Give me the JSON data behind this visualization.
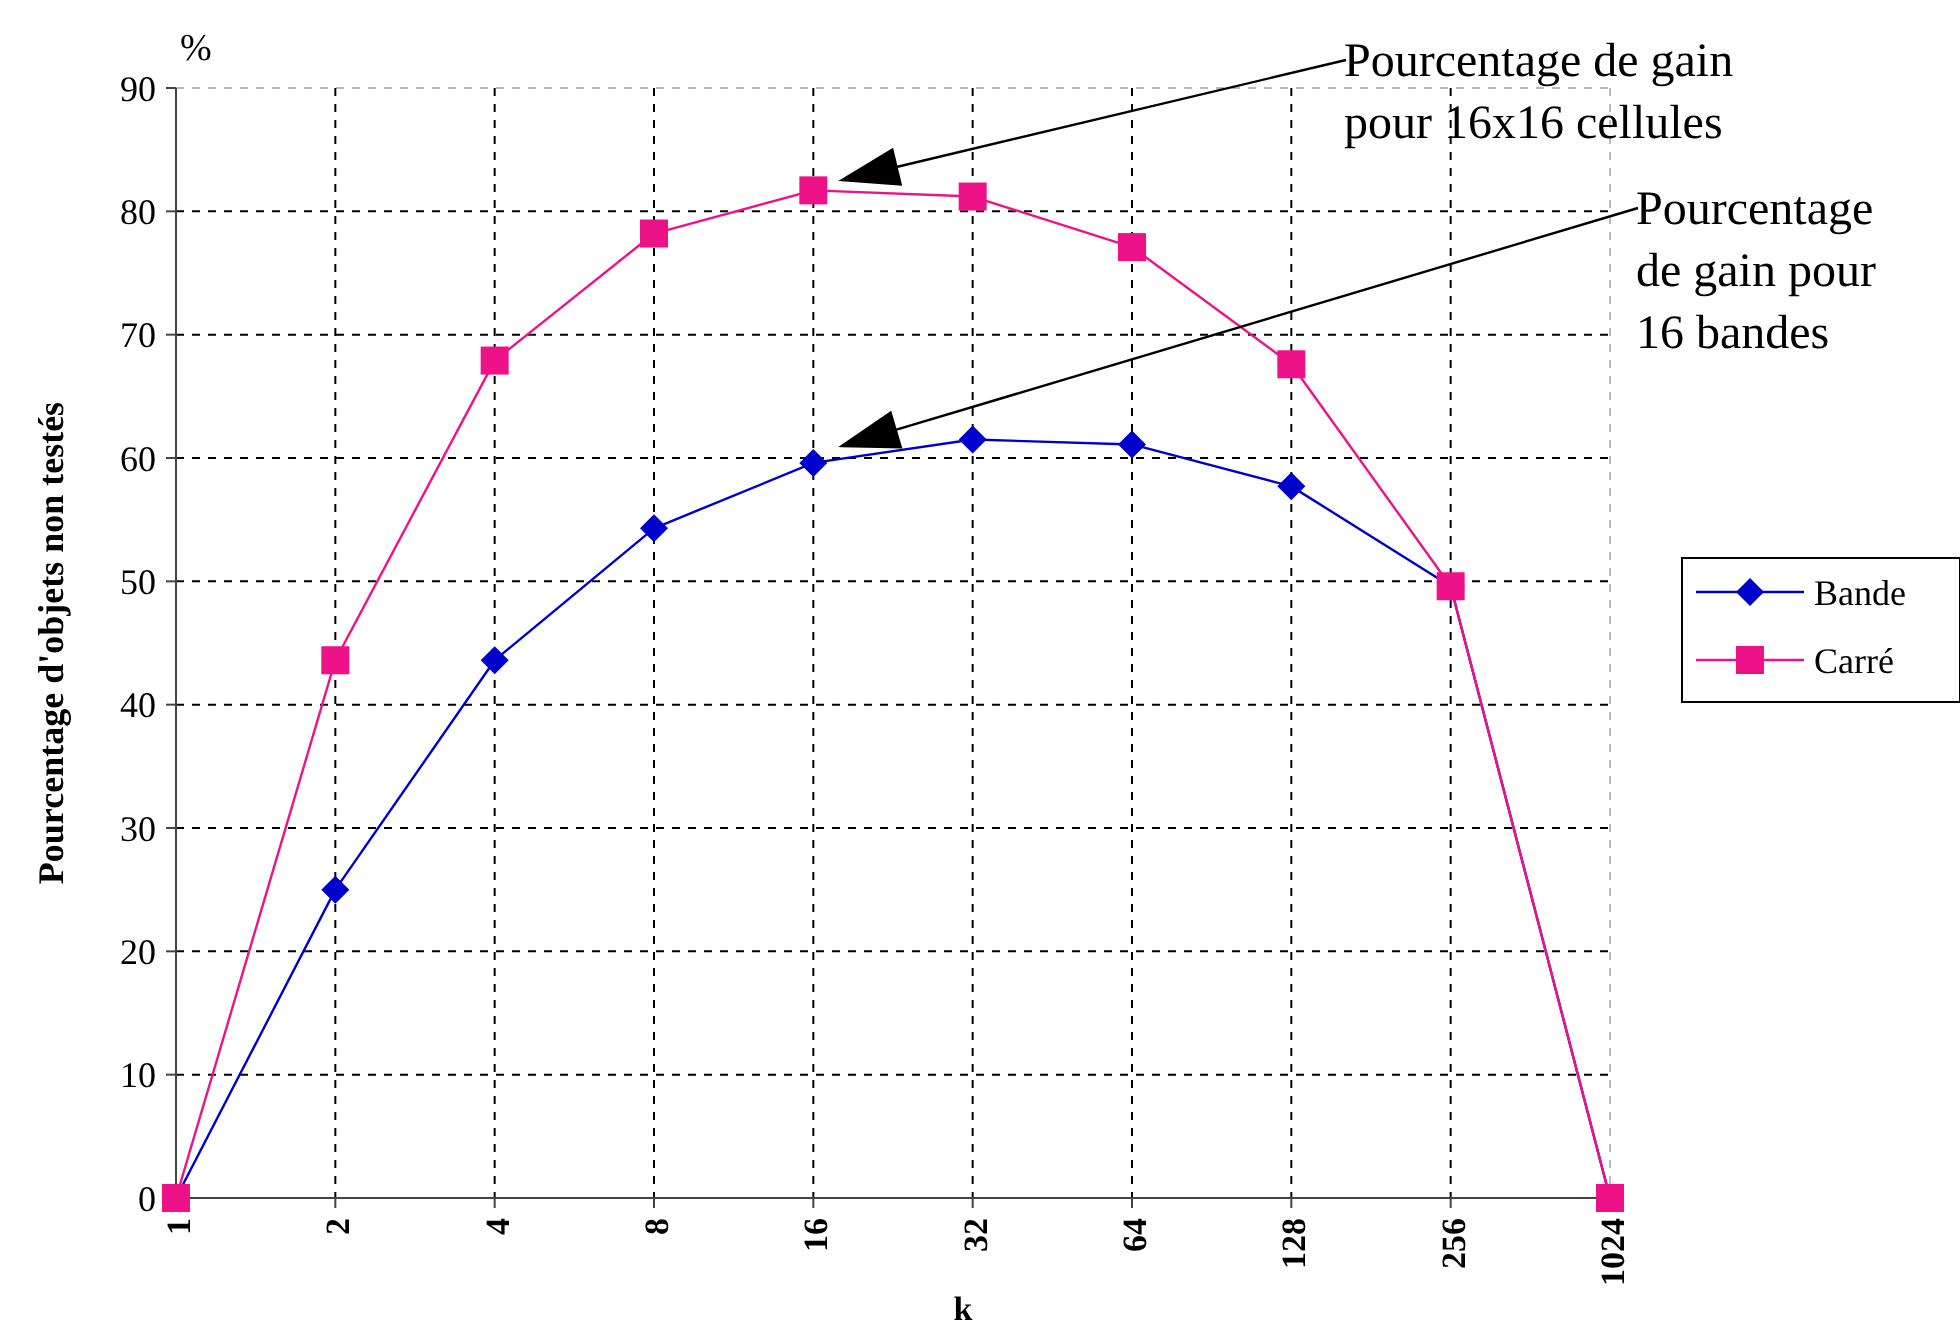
{
  "chart_data": {
    "type": "line",
    "ylabel": "Pourcentage d'objets non testés",
    "xlabel": "k",
    "categories": [
      "1",
      "2",
      "4",
      "8",
      "16",
      "32",
      "64",
      "128",
      "256",
      "1024"
    ],
    "series": [
      {
        "name": "Bande",
        "color": "#0000cc",
        "marker": "diamond",
        "values": [
          0,
          25,
          43.6,
          54.3,
          59.6,
          61.5,
          61.1,
          57.7,
          49.6,
          0
        ]
      },
      {
        "name": "Carré",
        "color": "#ee1289",
        "marker": "square",
        "values": [
          0,
          43.6,
          67.9,
          78.2,
          81.7,
          81.2,
          77.1,
          67.6,
          49.6,
          0
        ]
      }
    ],
    "ylim": [
      0,
      90
    ],
    "yticks": [
      0,
      10,
      20,
      30,
      40,
      50,
      60,
      70,
      80,
      90
    ],
    "grid": true,
    "legend": "right",
    "line_style": "solid",
    "annotations": [
      "%",
      "Pourcentage de gain\npour 16x16 cellules",
      "Pourcentage\nde gain pour\n16 bandes"
    ]
  }
}
